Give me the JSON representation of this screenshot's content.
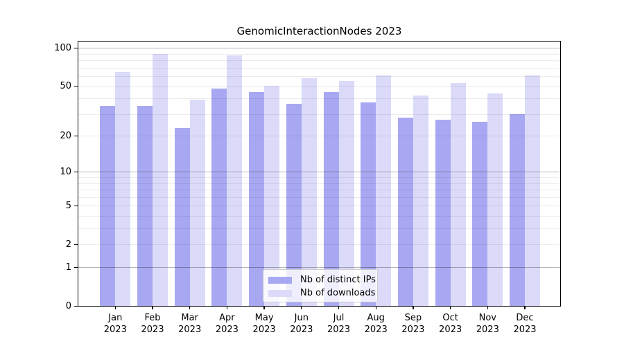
{
  "figure": {
    "title": "GenomicInteractionNodes 2023"
  },
  "legend": {
    "items": [
      {
        "label": "Nb of distinct IPs",
        "series": "ips"
      },
      {
        "label": "Nb of downloads",
        "series": "downloads"
      }
    ]
  },
  "axes": {
    "y_tick_labels": [
      "100",
      "50",
      "20",
      "10",
      "5",
      "2",
      "1",
      "0"
    ],
    "y_tick_values": [
      100,
      50,
      20,
      10,
      5,
      2,
      1,
      0
    ],
    "minor_grid_values": [
      2,
      3,
      4,
      5,
      6,
      7,
      8,
      9,
      20,
      30,
      40,
      50,
      60,
      70,
      80,
      90
    ],
    "major_grid_values": [
      1,
      10,
      100
    ]
  },
  "chart_data": {
    "type": "bar",
    "title": "GenomicInteractionNodes 2023",
    "xlabel": "",
    "ylabel": "",
    "scale": "log10(1+x)",
    "ylim": [
      0,
      112
    ],
    "y_ticks": [
      0,
      1,
      2,
      5,
      10,
      20,
      50,
      100
    ],
    "grid": "horizontal major+minor",
    "legend_position": "lower center",
    "months": [
      "Jan",
      "Feb",
      "Mar",
      "Apr",
      "May",
      "Jun",
      "Jul",
      "Aug",
      "Sep",
      "Oct",
      "Nov",
      "Dec"
    ],
    "year": "2023",
    "categories": [
      "Jan 2023",
      "Feb 2023",
      "Mar 2023",
      "Apr 2023",
      "May 2023",
      "Jun 2023",
      "Jul 2023",
      "Aug 2023",
      "Sep 2023",
      "Oct 2023",
      "Nov 2023",
      "Dec 2023"
    ],
    "series": [
      {
        "name": "Nb of distinct IPs",
        "color": "#a8a8f2",
        "values": [
          35,
          35,
          23,
          48,
          45,
          36,
          45,
          37,
          28,
          27,
          26,
          30
        ]
      },
      {
        "name": "Nb of downloads",
        "color": "#dbdbf9",
        "values": [
          65,
          90,
          39,
          87,
          50,
          58,
          55,
          61,
          42,
          53,
          44,
          61
        ]
      }
    ]
  }
}
